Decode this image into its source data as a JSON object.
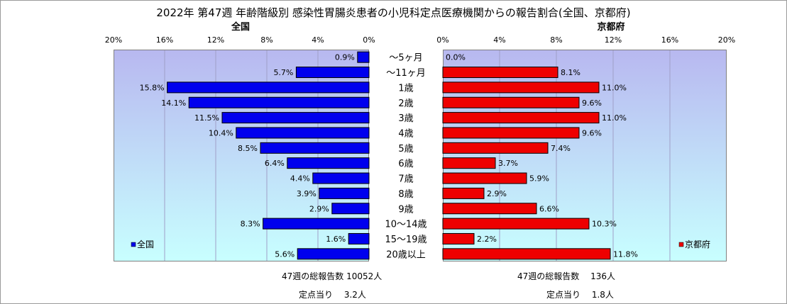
{
  "title": "2022年 第47週 年齢階級別 感染性胃腸炎患者の小児科定点医療機関からの報告割合(全国、京都府)",
  "colors": {
    "national": "#0000ee",
    "kyoto": "#ee0000",
    "plot_top": "#b8b8f0",
    "plot_bottom": "#c8ffff"
  },
  "chart_data": [
    {
      "type": "bar",
      "title": "全国",
      "orientation": "horizontal",
      "direction": "right-to-left",
      "categories": [
        "～5ヶ月",
        "～11ヶ月",
        "1歳",
        "2歳",
        "3歳",
        "4歳",
        "5歳",
        "6歳",
        "7歳",
        "8歳",
        "9歳",
        "10～14歳",
        "15～19歳",
        "20歳以上"
      ],
      "series": [
        {
          "name": "全国",
          "values": [
            0.9,
            5.7,
            15.8,
            14.1,
            11.5,
            10.4,
            8.5,
            6.4,
            4.4,
            3.9,
            2.9,
            8.3,
            1.6,
            5.6
          ]
        }
      ],
      "value_labels": [
        "0.9%",
        "5.7%",
        "15.8%",
        "14.1%",
        "11.5%",
        "10.4%",
        "8.5%",
        "6.4%",
        "4.4%",
        "3.9%",
        "2.9%",
        "8.3%",
        "1.6%",
        "5.6%"
      ],
      "xlim": [
        0,
        20
      ],
      "ticks": [
        "0%",
        "4%",
        "8%",
        "12%",
        "16%",
        "20%"
      ],
      "grid": true,
      "legend": "bottom-left"
    },
    {
      "type": "bar",
      "title": "京都府",
      "orientation": "horizontal",
      "direction": "left-to-right",
      "categories": [
        "～5ヶ月",
        "～11ヶ月",
        "1歳",
        "2歳",
        "3歳",
        "4歳",
        "5歳",
        "6歳",
        "7歳",
        "8歳",
        "9歳",
        "10～14歳",
        "15～19歳",
        "20歳以上"
      ],
      "series": [
        {
          "name": "京都府",
          "values": [
            0.0,
            8.1,
            11.0,
            9.6,
            11.0,
            9.6,
            7.4,
            3.7,
            5.9,
            2.9,
            6.6,
            10.3,
            2.2,
            11.8
          ]
        }
      ],
      "value_labels": [
        "0.0%",
        "8.1%",
        "11.0%",
        "9.6%",
        "11.0%",
        "9.6%",
        "7.4%",
        "3.7%",
        "5.9%",
        "2.9%",
        "6.6%",
        "10.3%",
        "2.2%",
        "11.8%"
      ],
      "xlim": [
        0,
        20
      ],
      "ticks": [
        "0%",
        "4%",
        "8%",
        "12%",
        "16%",
        "20%"
      ],
      "grid": true,
      "legend": "bottom-right"
    }
  ],
  "footer": {
    "national_total": "47週の総報告数 10052人",
    "national_per": "定点当り　 3.2人",
    "kyoto_total": "47週の総報告数　 136人",
    "kyoto_per": "定点当り　 1.8人"
  }
}
